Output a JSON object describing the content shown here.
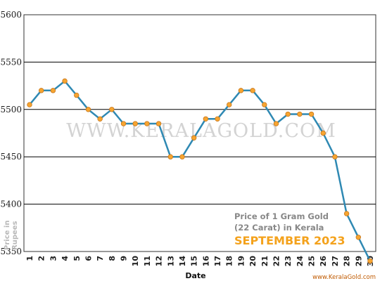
{
  "chart_data": {
    "type": "line",
    "watermark": "WWW.KERALAGOLD.COM",
    "info_line1": "Price of 1 Gram Gold",
    "info_line2": "(22 Carat) in Kerala",
    "month_label": "SEPTEMBER 2023",
    "site_label": "www.KeralaGold.com",
    "xlabel": "Date",
    "ylabel_line1": "Price in",
    "ylabel_line2": "Rupees",
    "ylim": [
      5350,
      5600
    ],
    "yticks": [
      5350,
      5400,
      5450,
      5500,
      5550,
      5600
    ],
    "grid": "horizontal",
    "x": [
      1,
      2,
      3,
      4,
      5,
      6,
      7,
      8,
      9,
      10,
      11,
      12,
      13,
      14,
      15,
      16,
      17,
      18,
      19,
      20,
      21,
      22,
      23,
      24,
      25,
      26,
      27,
      28,
      29,
      30
    ],
    "values": [
      5505,
      5520,
      5520,
      5530,
      5515,
      5500,
      5490,
      5500,
      5485,
      5485,
      5485,
      5485,
      5450,
      5450,
      5470,
      5490,
      5490,
      5505,
      5520,
      5520,
      5505,
      5485,
      5495,
      5495,
      5495,
      5475,
      5450,
      5390,
      5365,
      5340
    ],
    "colors": {
      "line": "#2f89b3",
      "marker": "#f6a531",
      "marker_stroke": "#c7761b",
      "grid": "#000000"
    }
  }
}
